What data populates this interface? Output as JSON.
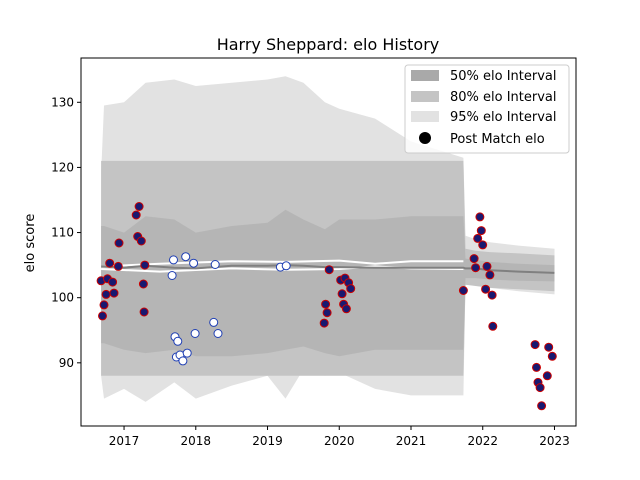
{
  "chart_data": {
    "type": "scatter",
    "title": "Harry Sheppard: elo History",
    "xlabel": "",
    "ylabel": "elo score",
    "xlim": [
      2016.4,
      2023.3
    ],
    "ylim": [
      80.3,
      136.8
    ],
    "x_ticks": [
      2017,
      2018,
      2019,
      2020,
      2021,
      2022,
      2023
    ],
    "y_ticks": [
      90,
      100,
      110,
      120,
      130
    ],
    "legend_position": "top-right",
    "legend": [
      {
        "label": "50% elo Interval",
        "kind": "band50"
      },
      {
        "label": "80% elo Interval",
        "kind": "band80"
      },
      {
        "label": "95% elo Interval",
        "kind": "band95"
      },
      {
        "label": "Post Match elo",
        "kind": "marker"
      }
    ],
    "colors": {
      "band50": "#a9a9a9",
      "band80": "#c4c4c4",
      "band95": "#e2e2e2",
      "mean_line": "#808080",
      "win_face": "#191970",
      "win_edge": "#cc0000",
      "loss_face": "#ffffff",
      "loss_edge": "#1f3fb4",
      "white_line": "#ffffff"
    },
    "bands": {
      "x": [
        2016.68,
        2016.72,
        2017.0,
        2017.3,
        2017.7,
        2018.0,
        2018.5,
        2019.0,
        2019.25,
        2019.5,
        2019.8,
        2020.0,
        2020.5,
        2021.0,
        2021.73,
        2021.76,
        2021.9,
        2022.1,
        2022.5,
        2023.0
      ],
      "mean": [
        104.8,
        104.8,
        104.6,
        104.9,
        104.6,
        104.5,
        104.9,
        104.9,
        105.0,
        104.9,
        104.7,
        104.7,
        104.6,
        104.6,
        104.6,
        104.5,
        104.5,
        104.2,
        104.0,
        103.8
      ],
      "upper95": [
        119.0,
        129.5,
        130.0,
        133.0,
        133.5,
        132.5,
        133.0,
        133.5,
        134.0,
        133.0,
        130.0,
        129.0,
        127.5,
        124.0,
        121.5,
        109.5,
        109.0,
        108.5,
        108.0,
        107.5
      ],
      "lower95": [
        88.0,
        84.5,
        86.0,
        84.0,
        87.0,
        84.5,
        86.5,
        88.0,
        84.5,
        89.0,
        88.0,
        88.5,
        86.0,
        85.0,
        85.0,
        102.0,
        102.0,
        101.5,
        101.0,
        100.5
      ],
      "upper80": [
        121.0,
        121.0,
        121.0,
        121.0,
        121.0,
        121.0,
        121.0,
        121.0,
        121.0,
        121.0,
        121.0,
        121.0,
        121.0,
        121.0,
        121.0,
        107.5,
        107.2,
        107.0,
        106.8,
        106.5
      ],
      "lower80": [
        88.0,
        88.0,
        88.0,
        88.0,
        88.0,
        88.0,
        88.0,
        88.0,
        88.0,
        88.0,
        88.0,
        88.0,
        88.0,
        88.0,
        88.0,
        102.0,
        101.8,
        101.5,
        101.3,
        101.0
      ],
      "upper50": [
        111.0,
        111.0,
        110.0,
        112.5,
        112.0,
        110.0,
        111.0,
        111.5,
        113.5,
        112.0,
        110.5,
        112.0,
        112.0,
        112.5,
        112.5,
        106.0,
        105.8,
        105.5,
        105.2,
        105.0
      ],
      "lower50": [
        93.0,
        93.0,
        92.0,
        91.5,
        92.0,
        91.0,
        91.0,
        91.5,
        92.0,
        92.5,
        91.5,
        91.0,
        92.0,
        92.0,
        92.0,
        103.0,
        103.0,
        102.8,
        102.6,
        102.5
      ]
    },
    "white_lines": [
      {
        "x": [
          2016.68,
          2017.5,
          2018.5,
          2019.25,
          2020.0,
          2020.5,
          2021.0,
          2021.73
        ],
        "y": [
          104.8,
          105.2,
          105.6,
          105.5,
          105.7,
          105.2,
          105.6,
          105.6
        ]
      },
      {
        "x": [
          2016.68,
          2017.5,
          2018.5,
          2019.25,
          2020.0,
          2020.5,
          2021.0,
          2021.73
        ],
        "y": [
          104.4,
          104.0,
          104.5,
          104.3,
          104.4,
          104.8,
          104.5,
          104.4
        ]
      }
    ],
    "wins": [
      {
        "x": 2016.68,
        "y": 102.6
      },
      {
        "x": 2016.7,
        "y": 97.2
      },
      {
        "x": 2016.72,
        "y": 98.9
      },
      {
        "x": 2016.75,
        "y": 100.5
      },
      {
        "x": 2016.77,
        "y": 102.9
      },
      {
        "x": 2016.8,
        "y": 105.3
      },
      {
        "x": 2016.84,
        "y": 102.4
      },
      {
        "x": 2016.86,
        "y": 100.7
      },
      {
        "x": 2016.92,
        "y": 104.8
      },
      {
        "x": 2016.93,
        "y": 108.4
      },
      {
        "x": 2017.17,
        "y": 112.7
      },
      {
        "x": 2017.19,
        "y": 109.4
      },
      {
        "x": 2017.21,
        "y": 114.0
      },
      {
        "x": 2017.24,
        "y": 108.7
      },
      {
        "x": 2017.27,
        "y": 102.1
      },
      {
        "x": 2017.28,
        "y": 97.8
      },
      {
        "x": 2017.29,
        "y": 105.0
      },
      {
        "x": 2019.79,
        "y": 96.1
      },
      {
        "x": 2019.81,
        "y": 99.0
      },
      {
        "x": 2019.83,
        "y": 97.7
      },
      {
        "x": 2019.86,
        "y": 104.3
      },
      {
        "x": 2020.02,
        "y": 102.7
      },
      {
        "x": 2020.04,
        "y": 100.6
      },
      {
        "x": 2020.06,
        "y": 99.0
      },
      {
        "x": 2020.08,
        "y": 103.0
      },
      {
        "x": 2020.1,
        "y": 98.3
      },
      {
        "x": 2020.13,
        "y": 102.3
      },
      {
        "x": 2020.16,
        "y": 101.4
      },
      {
        "x": 2021.73,
        "y": 101.1
      },
      {
        "x": 2021.88,
        "y": 106.0
      },
      {
        "x": 2021.9,
        "y": 104.6
      },
      {
        "x": 2021.93,
        "y": 109.1
      },
      {
        "x": 2021.96,
        "y": 112.4
      },
      {
        "x": 2021.98,
        "y": 110.3
      },
      {
        "x": 2022.0,
        "y": 108.1
      },
      {
        "x": 2022.04,
        "y": 101.3
      },
      {
        "x": 2022.06,
        "y": 104.8
      },
      {
        "x": 2022.1,
        "y": 103.5
      },
      {
        "x": 2022.13,
        "y": 100.4
      },
      {
        "x": 2022.14,
        "y": 95.6
      },
      {
        "x": 2022.73,
        "y": 92.8
      },
      {
        "x": 2022.75,
        "y": 89.3
      },
      {
        "x": 2022.77,
        "y": 87.0
      },
      {
        "x": 2022.8,
        "y": 86.2
      },
      {
        "x": 2022.82,
        "y": 83.4
      },
      {
        "x": 2022.9,
        "y": 88.0
      },
      {
        "x": 2022.92,
        "y": 92.4
      },
      {
        "x": 2022.97,
        "y": 91.0
      }
    ],
    "losses": [
      {
        "x": 2017.67,
        "y": 103.4
      },
      {
        "x": 2017.69,
        "y": 105.8
      },
      {
        "x": 2017.71,
        "y": 94.0
      },
      {
        "x": 2017.73,
        "y": 90.9
      },
      {
        "x": 2017.75,
        "y": 93.3
      },
      {
        "x": 2017.78,
        "y": 91.2
      },
      {
        "x": 2017.82,
        "y": 90.3
      },
      {
        "x": 2017.86,
        "y": 106.3
      },
      {
        "x": 2017.88,
        "y": 91.5
      },
      {
        "x": 2017.97,
        "y": 105.3
      },
      {
        "x": 2017.99,
        "y": 94.5
      },
      {
        "x": 2018.25,
        "y": 96.2
      },
      {
        "x": 2018.27,
        "y": 105.1
      },
      {
        "x": 2018.31,
        "y": 94.5
      },
      {
        "x": 2019.18,
        "y": 104.7
      },
      {
        "x": 2019.26,
        "y": 104.9
      }
    ]
  }
}
